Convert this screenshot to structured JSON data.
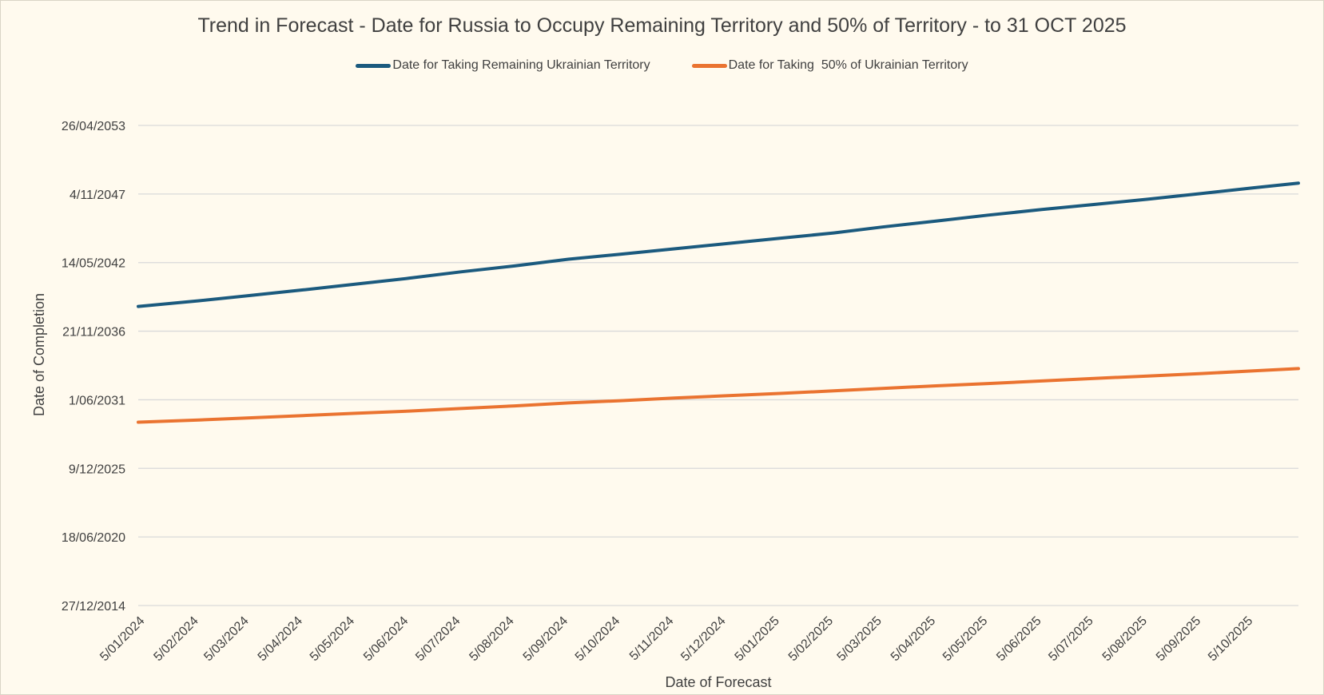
{
  "chart_data": {
    "type": "line",
    "title": "Trend in Forecast - Date for Russia to Occupy Remaining Territory and 50% of Territory - to 31 OCT 2025",
    "xlabel": "Date of Forecast",
    "ylabel": "Date of Completion",
    "legend_position": "top",
    "grid": true,
    "x_ticks": [
      "5/01/2024",
      "5/02/2024",
      "5/03/2024",
      "5/04/2024",
      "5/05/2024",
      "5/06/2024",
      "5/07/2024",
      "5/08/2024",
      "5/09/2024",
      "5/10/2024",
      "5/11/2024",
      "5/12/2024",
      "5/01/2025",
      "5/02/2025",
      "5/03/2025",
      "5/04/2025",
      "5/05/2025",
      "5/06/2025",
      "5/07/2025",
      "5/08/2025",
      "5/09/2025",
      "5/10/2025"
    ],
    "y_ticks": [
      "27/12/2014",
      "18/06/2020",
      "9/12/2025",
      "1/06/2031",
      "21/11/2036",
      "14/05/2042",
      "4/11/2047",
      "26/04/2053"
    ],
    "xlim": [
      "2024-01-01",
      "2025-10-31"
    ],
    "ylim": [
      "2014-12-27",
      "2053-04-26"
    ],
    "series": [
      {
        "name": "Date for Taking Remaining Ukrainian Territory",
        "color": "#1b5a7e",
        "points": [
          [
            "2024-01-01",
            "2038-11-13"
          ],
          [
            "2024-02-05",
            "2039-04-28"
          ],
          [
            "2024-03-05",
            "2039-09-26"
          ],
          [
            "2024-04-05",
            "2040-03-09"
          ],
          [
            "2024-05-05",
            "2040-08-22"
          ],
          [
            "2024-06-05",
            "2041-02-12"
          ],
          [
            "2024-07-05",
            "2041-08-16"
          ],
          [
            "2024-08-05",
            "2042-02-06"
          ],
          [
            "2024-09-05",
            "2042-08-21"
          ],
          [
            "2024-10-05",
            "2043-01-13"
          ],
          [
            "2024-11-05",
            "2043-06-18"
          ],
          [
            "2024-12-05",
            "2043-11-18"
          ],
          [
            "2025-01-05",
            "2044-04-22"
          ],
          [
            "2025-02-05",
            "2044-09-24"
          ],
          [
            "2025-03-05",
            "2045-03-15"
          ],
          [
            "2025-04-05",
            "2045-09-06"
          ],
          [
            "2025-05-05",
            "2046-02-26"
          ],
          [
            "2025-06-05",
            "2046-08-09"
          ],
          [
            "2025-07-05",
            "2047-01-02"
          ],
          [
            "2025-08-05",
            "2047-06-04"
          ],
          [
            "2025-09-05",
            "2047-11-18"
          ],
          [
            "2025-10-05",
            "2048-05-02"
          ],
          [
            "2025-10-31",
            "2048-09-16"
          ]
        ]
      },
      {
        "name": "Date for Taking  50% of Ukrainian Territory",
        "color": "#ea7330",
        "points": [
          [
            "2024-01-01",
            "2029-08-17"
          ],
          [
            "2024-02-05",
            "2029-10-21"
          ],
          [
            "2024-03-05",
            "2029-12-19"
          ],
          [
            "2024-04-05",
            "2030-02-26"
          ],
          [
            "2024-05-05",
            "2030-05-01"
          ],
          [
            "2024-06-05",
            "2030-07-06"
          ],
          [
            "2024-07-05",
            "2030-09-18"
          ],
          [
            "2024-08-05",
            "2030-12-04"
          ],
          [
            "2024-09-05",
            "2031-03-01"
          ],
          [
            "2024-10-05",
            "2031-05-05"
          ],
          [
            "2024-11-05",
            "2031-07-20"
          ],
          [
            "2024-12-05",
            "2031-09-25"
          ],
          [
            "2025-01-05",
            "2031-12-03"
          ],
          [
            "2025-02-05",
            "2032-02-15"
          ],
          [
            "2025-03-05",
            "2032-04-28"
          ],
          [
            "2025-04-05",
            "2032-07-11"
          ],
          [
            "2025-05-05",
            "2032-09-17"
          ],
          [
            "2025-06-05",
            "2032-11-30"
          ],
          [
            "2025-07-05",
            "2033-02-13"
          ],
          [
            "2025-08-05",
            "2033-04-24"
          ],
          [
            "2025-09-05",
            "2033-07-04"
          ],
          [
            "2025-10-05",
            "2033-09-20"
          ],
          [
            "2025-10-31",
            "2033-11-27"
          ]
        ]
      }
    ]
  }
}
